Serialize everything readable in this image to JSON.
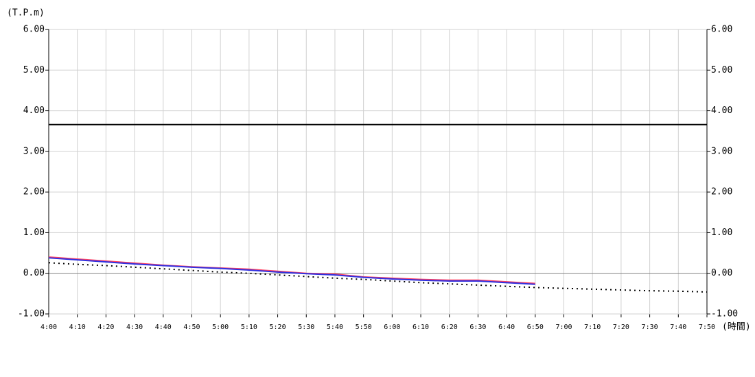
{
  "chart_data": {
    "type": "line",
    "y_label": "(T.P.m)",
    "x_label": "(時間)",
    "categories": [
      "4:00",
      "4:10",
      "4:20",
      "4:30",
      "4:40",
      "4:50",
      "5:00",
      "5:10",
      "5:20",
      "5:30",
      "5:40",
      "5:50",
      "6:00",
      "6:10",
      "6:20",
      "6:30",
      "6:40",
      "6:50",
      "7:00",
      "7:10",
      "7:20",
      "7:30",
      "7:40",
      "7:50"
    ],
    "series": [
      {
        "color": "#ff4060",
        "style": "solid",
        "values": [
          0.4,
          0.35,
          0.3,
          0.25,
          0.2,
          0.16,
          0.13,
          0.1,
          0.05,
          0.0,
          -0.02,
          -0.09,
          -0.12,
          -0.15,
          -0.17,
          -0.17,
          -0.21,
          -0.25,
          null,
          null,
          null,
          null,
          null,
          null
        ]
      },
      {
        "color": "#3030e0",
        "style": "solid",
        "values": [
          0.38,
          0.33,
          0.28,
          0.23,
          0.19,
          0.15,
          0.12,
          0.08,
          0.03,
          -0.01,
          -0.04,
          -0.1,
          -0.14,
          -0.17,
          -0.19,
          -0.19,
          -0.23,
          -0.27,
          null,
          null,
          null,
          null,
          null,
          null
        ]
      },
      {
        "color": "#000000",
        "style": "dotted",
        "values": [
          0.26,
          0.22,
          0.19,
          0.15,
          0.11,
          0.07,
          0.03,
          0.0,
          -0.04,
          -0.08,
          -0.12,
          -0.15,
          -0.19,
          -0.23,
          -0.26,
          -0.29,
          -0.32,
          -0.35,
          -0.37,
          -0.39,
          -0.41,
          -0.43,
          -0.44,
          -0.46
        ]
      }
    ],
    "reference_lines": [
      {
        "value": 3.66,
        "color": "#000000"
      }
    ],
    "ylim": [
      -1,
      6
    ],
    "yticks": [
      {
        "value": -1,
        "label": "-1.00"
      },
      {
        "value": 0,
        "label": "0.00"
      },
      {
        "value": 1,
        "label": "1.00"
      },
      {
        "value": 2,
        "label": "2.00"
      },
      {
        "value": 3,
        "label": "3.00"
      },
      {
        "value": 4,
        "label": "4.00"
      },
      {
        "value": 5,
        "label": "5.00"
      },
      {
        "value": 6,
        "label": "6.00"
      }
    ],
    "grid": true
  }
}
